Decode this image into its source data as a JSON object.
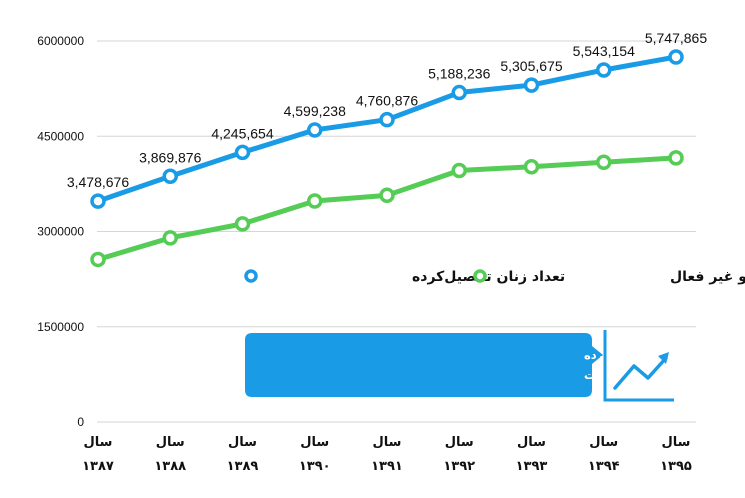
{
  "chart_data": {
    "type": "line",
    "categories": [
      [
        "سال",
        "۱۳۸۷"
      ],
      [
        "سال",
        "۱۳۸۸"
      ],
      [
        "سال",
        "۱۳۸۹"
      ],
      [
        "سال",
        "۱۳۹۰"
      ],
      [
        "سال",
        "۱۳۹۱"
      ],
      [
        "سال",
        "۱۳۹۲"
      ],
      [
        "سال",
        "۱۳۹۳"
      ],
      [
        "سال",
        "۱۳۹۴"
      ],
      [
        "سال",
        "۱۳۹۵"
      ]
    ],
    "series": [
      {
        "name": "تعداد زنان تحصیل‌کرده",
        "color": "#1a9be6",
        "values": [
          3478676,
          3869876,
          4245654,
          4599238,
          4760876,
          5188236,
          5305675,
          5543154,
          5747865
        ],
        "labels": [
          "3,478,676",
          "3,869,876",
          "4,245,654",
          "4,599,238",
          "4,760,876",
          "5,188,236",
          "5,305,675",
          "5,543,154",
          "5,747,865"
        ]
      },
      {
        "name": "تعداد زنان بیکار و غیر فعال",
        "color": "#55cc55",
        "values": [
          2560000,
          2900000,
          3120000,
          3480000,
          3570000,
          3960000,
          4020000,
          4090000,
          4160000
        ]
      }
    ],
    "yticks": [
      0,
      1500000,
      3000000,
      4500000,
      6000000
    ],
    "ylim": [
      0,
      6000000
    ],
    "grid": true,
    "legend_placement": "middle",
    "annotation": {
      "lines": [
        "این آمار نشان می‌دهد به هر میزانی که تعداد زنان تحصیل‌کرده",
        "افزایش داشته است، میزان بیکاری آنها نیز افزایش یافته است"
      ],
      "color": "#1a9be6",
      "icon": "trend-up-chart-icon"
    }
  }
}
